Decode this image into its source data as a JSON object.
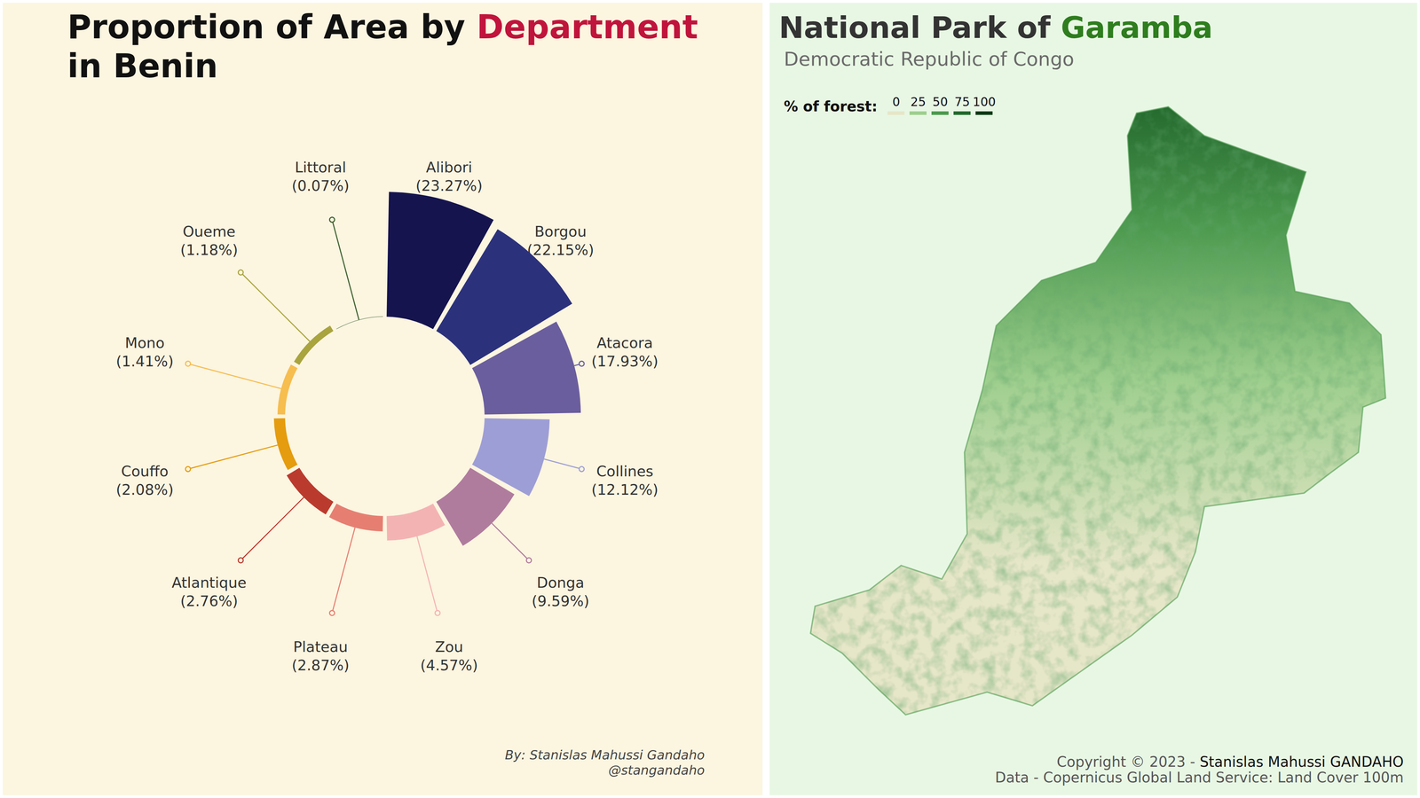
{
  "chart_data": [
    {
      "type": "bar",
      "title": "Proportion of Area by Department in Benin",
      "title_highlight": "Department",
      "categories": [
        "Alibori",
        "Borgou",
        "Atacora",
        "Collines",
        "Donga",
        "Zou",
        "Plateau",
        "Atlantique",
        "Couffo",
        "Mono",
        "Oueme",
        "Littoral"
      ],
      "values": [
        23.27,
        22.15,
        17.93,
        12.12,
        9.59,
        4.57,
        2.87,
        2.76,
        2.08,
        1.41,
        1.18,
        0.07
      ],
      "value_labels": [
        "(23.27%)",
        "(22.15%)",
        "(17.93%)",
        "(12.12%)",
        "(9.59%)",
        "(4.57%)",
        "(2.87%)",
        "(2.76%)",
        "(2.08%)",
        "(1.41%)",
        "(1.18%)",
        "(0.07%)"
      ],
      "colors": [
        "#16144f",
        "#2c317c",
        "#6b5e9e",
        "#9e9ed6",
        "#b07c9e",
        "#f4b3b3",
        "#e67f72",
        "#bb3a2e",
        "#e59c0e",
        "#f6bd4f",
        "#a9a43e",
        "#3b5e2d"
      ],
      "data_labels": true,
      "tick_labels": false,
      "annotations": [
        "By: Stanislas Mahussi Gandaho",
        "@stangandaho"
      ]
    },
    {
      "type": "map",
      "title": "National Park of Garamba",
      "title_highlight": "Garamba",
      "subtitle": "Democratic Republic of Congo",
      "legend_title": "% of forest:",
      "legend_values": [
        0,
        25,
        50,
        75,
        100
      ],
      "colors": [
        "#e6e6c8",
        "#9fcf8f",
        "#4e9b50",
        "#256b2f",
        "#0e3b17"
      ],
      "annotations": [
        "Copyright © 2023 - Stanislas Mahussi GANDAHO",
        "Data - Copernicus Global Land Service: Land Cover 100m"
      ]
    }
  ]
}
